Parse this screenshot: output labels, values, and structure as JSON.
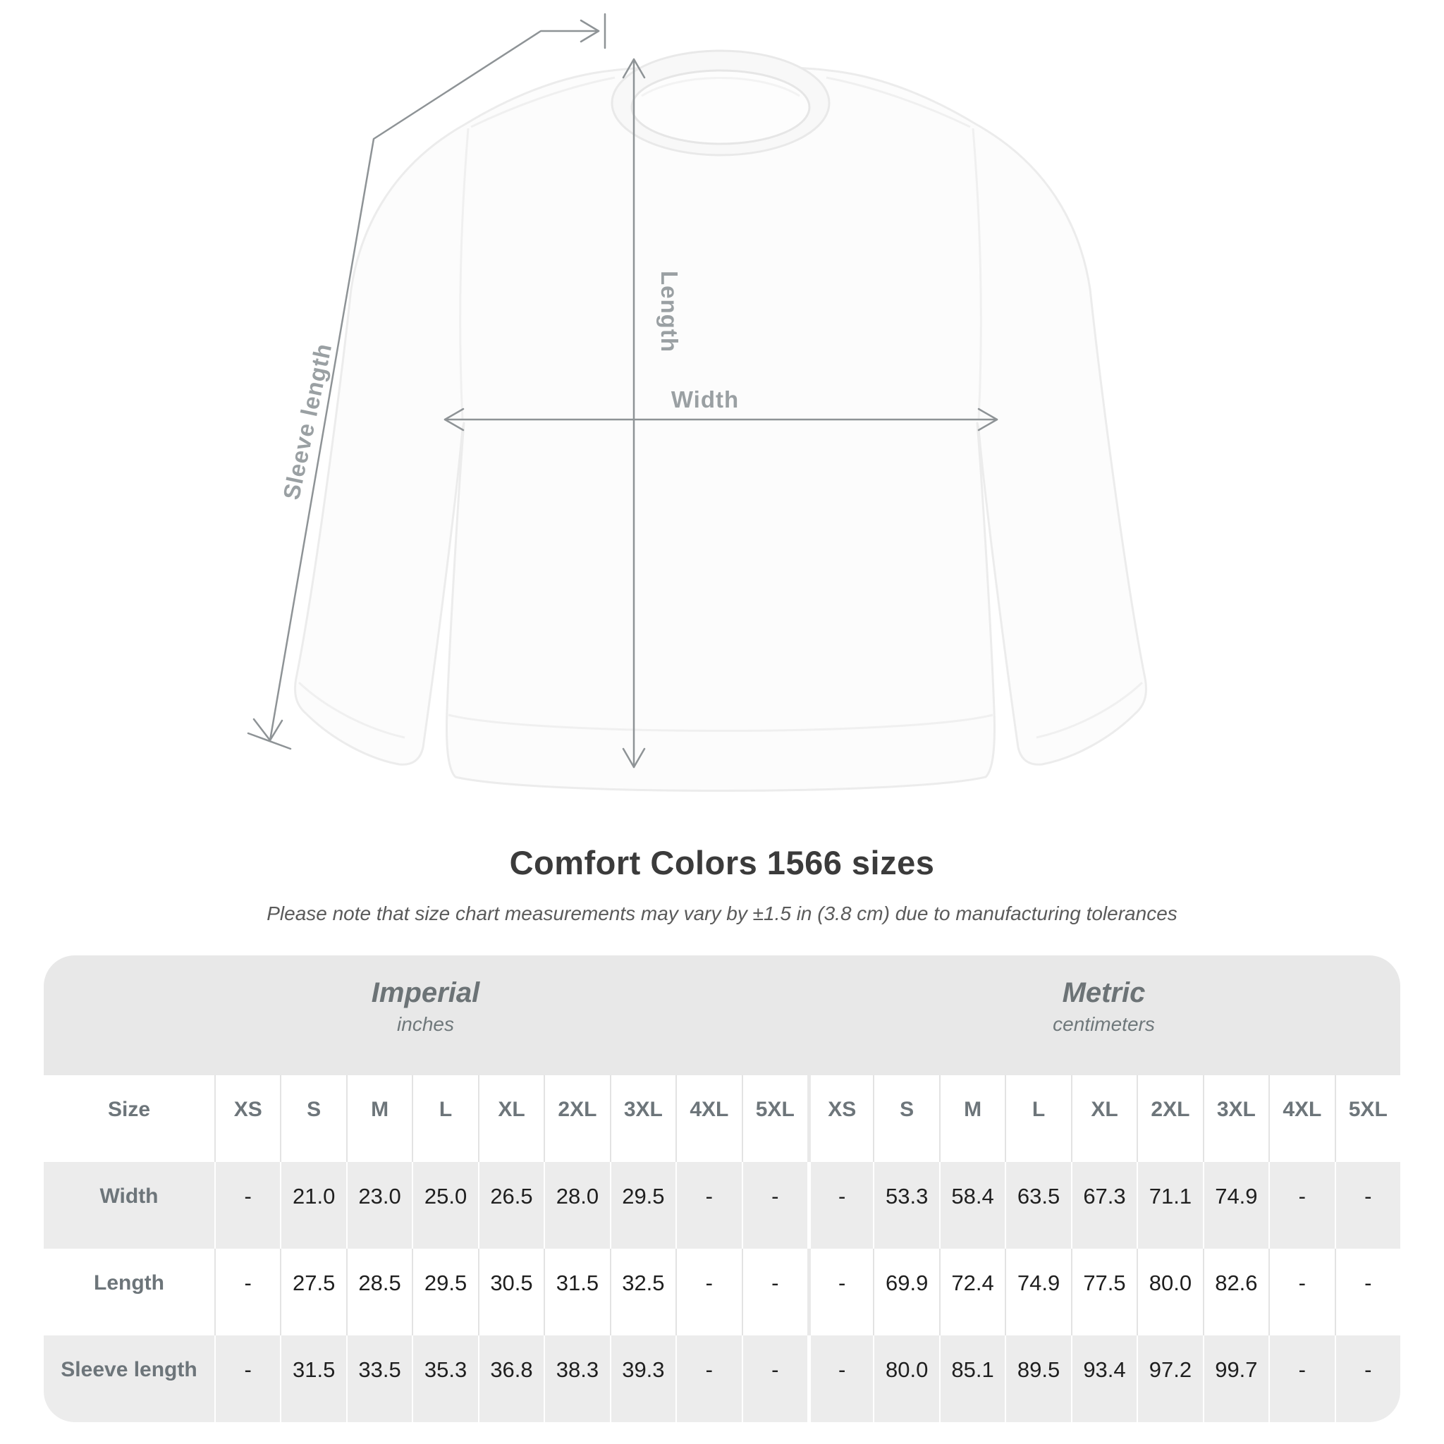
{
  "diagram": {
    "length_label": "Length",
    "width_label": "Width",
    "sleeve_label": "Sleeve length"
  },
  "heading": {
    "title": "Comfort Colors 1566 sizes",
    "subtitle": "Please note that size chart measurements may vary by ±1.5 in (3.8 cm) due to manufacturing tolerances"
  },
  "table": {
    "size_header": "Size",
    "groups": [
      {
        "label": "Imperial",
        "unit": "inches"
      },
      {
        "label": "Metric",
        "unit": "centimeters"
      }
    ],
    "sizes": [
      "XS",
      "S",
      "M",
      "L",
      "XL",
      "2XL",
      "3XL",
      "4XL",
      "5XL"
    ],
    "rows": [
      {
        "label": "Width",
        "imperial": [
          "-",
          "21.0",
          "23.0",
          "25.0",
          "26.5",
          "28.0",
          "29.5",
          "-",
          "-"
        ],
        "metric": [
          "-",
          "53.3",
          "58.4",
          "63.5",
          "67.3",
          "71.1",
          "74.9",
          "-",
          "-"
        ]
      },
      {
        "label": "Length",
        "imperial": [
          "-",
          "27.5",
          "28.5",
          "29.5",
          "30.5",
          "31.5",
          "32.5",
          "-",
          "-"
        ],
        "metric": [
          "-",
          "69.9",
          "72.4",
          "74.9",
          "77.5",
          "80.0",
          "82.6",
          "-",
          "-"
        ]
      },
      {
        "label": "Sleeve length",
        "imperial": [
          "-",
          "31.5",
          "33.5",
          "35.3",
          "36.8",
          "38.3",
          "39.3",
          "-",
          "-"
        ],
        "metric": [
          "-",
          "80.0",
          "85.1",
          "89.5",
          "93.4",
          "97.2",
          "99.7",
          "-",
          "-"
        ]
      }
    ]
  },
  "colors": {
    "measurement_line": "#8e9396",
    "diagram_label": "#9aa0a3",
    "band_bg": "#e8e8e8",
    "row_alt_bg": "#ececec",
    "header_text": "#6d757a",
    "value_text": "#1f1f1f",
    "title_text": "#3b3b3b"
  }
}
